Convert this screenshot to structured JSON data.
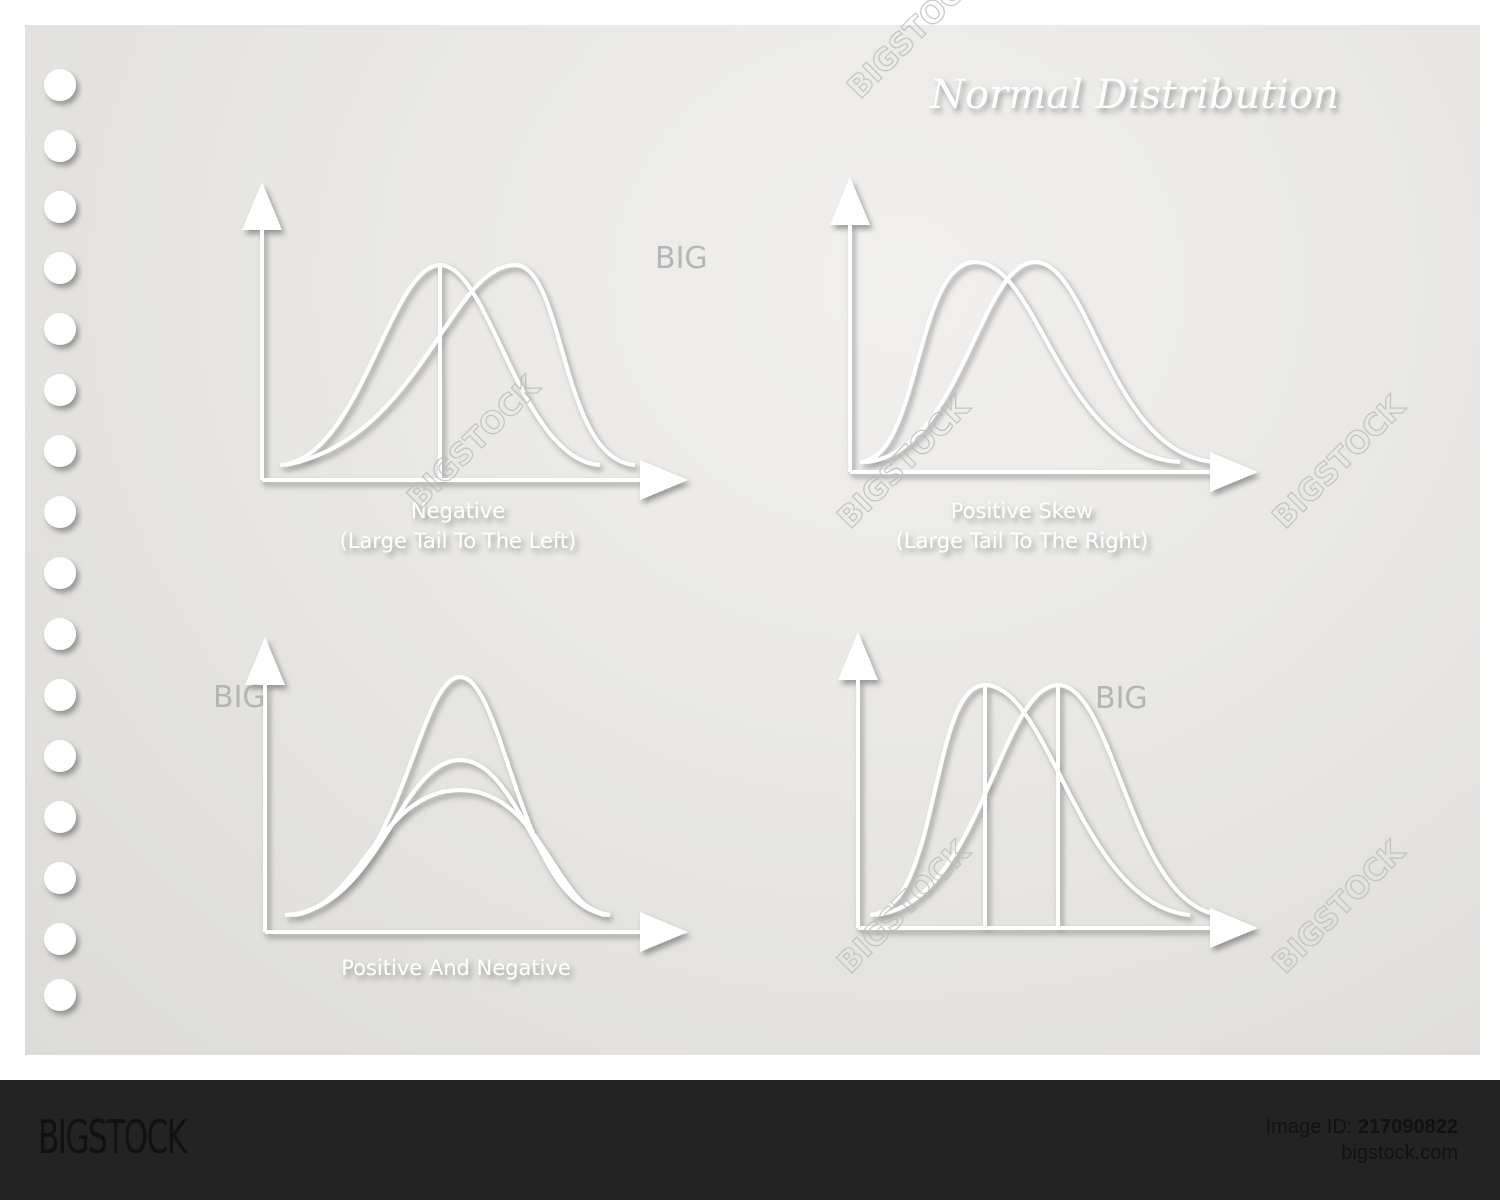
{
  "title": "Normal Distribution",
  "panels": [
    {
      "label_line1": "Negative",
      "label_line2": "(Large Tail To The Left)"
    },
    {
      "label_line1": "Positive Skew",
      "label_line2": "(Large Tail To The Right)"
    },
    {
      "label_line1": "Positive And Negative"
    },
    {
      "label_line1": ""
    }
  ],
  "watermark": {
    "large": "BIGSTOCK",
    "small": "BIG"
  },
  "footer": {
    "brand": "BIGSTOCK",
    "image_id_label": "Image ID:",
    "image_id": "217090822",
    "site": "bigstock.com"
  },
  "colors": {
    "paper": "#e6e5e2",
    "curve": "#ffffff",
    "footer": "#232323"
  }
}
